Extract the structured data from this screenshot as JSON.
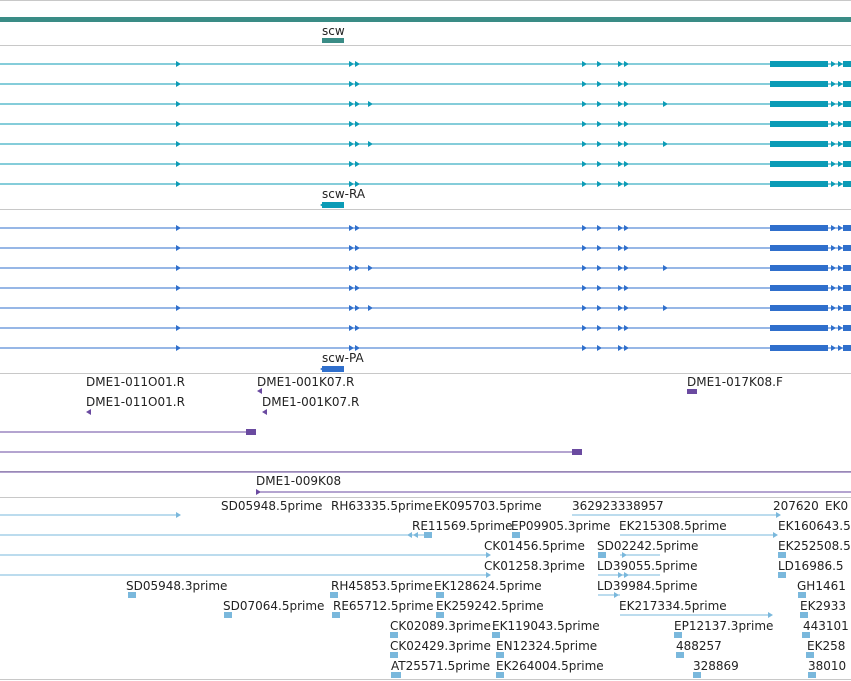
{
  "colors": {
    "gene": "#3a8c86",
    "rna": "#0b9bb6",
    "protein": "#2f6fcc",
    "dme": "#6a4aa0",
    "est": "#7ab8dc",
    "grid": "#c8c8c8"
  },
  "tracks": {
    "gene": {
      "label": "scw"
    },
    "rna": {
      "label": "scw-RA"
    },
    "protein": {
      "label": "scw-PA"
    },
    "dme": {
      "labels": [
        "DME1-011O01.R",
        "DME1-001K07.R",
        "DME1-017K08.F",
        "DME1-011O01.R",
        "DME1-001K07.R",
        "DME1-009K08"
      ]
    },
    "est": {
      "labels": [
        "SD05948.5prime",
        "RH63335.5prime",
        "EK095703.5prime",
        "362923338957",
        "207620",
        "EK0",
        "RE11569.5prime",
        "EP09905.3prime",
        "EK215308.5prime",
        "EK160643.5",
        "CK01456.5prime",
        "SD02242.5prime",
        "EK252508.5",
        "CK01258.3prime",
        "LD39055.5prime",
        "LD16986.5",
        "SD05948.3prime",
        "RH45853.5prime",
        "EK128624.5prime",
        "LD39984.5prime",
        "GH1461",
        "SD07064.5prime",
        "RE65712.5prime",
        "EK259242.5prime",
        "EK217334.5prime",
        "EK2933",
        "CK02089.3prime",
        "EK119043.5prime",
        "EP12137.3prime",
        "443101",
        "CK02429.3prime",
        "EN12324.5prime",
        "488257",
        "EK258",
        "AT25571.5prime",
        "EK264004.5prime",
        "328869",
        "38010"
      ]
    }
  }
}
